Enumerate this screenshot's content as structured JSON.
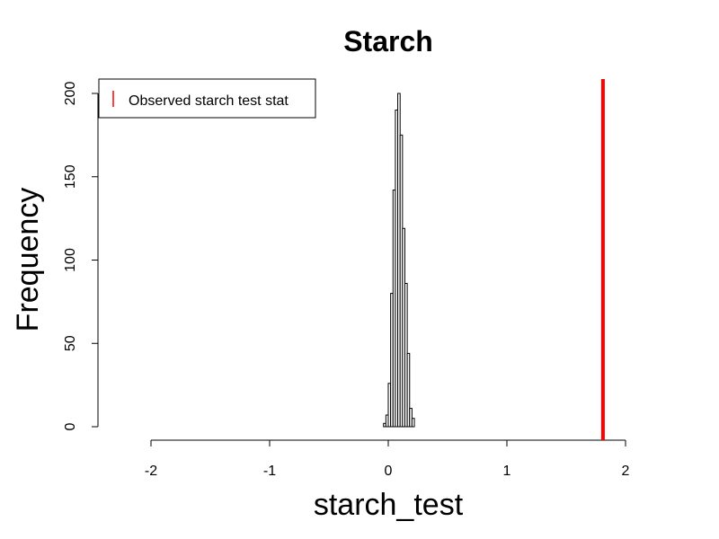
{
  "chart_data": {
    "type": "histogram",
    "title": "Starch",
    "xlabel": "starch_test",
    "ylabel": "Frequency",
    "xlim": [
      -2.5,
      2.0
    ],
    "ylim": [
      0,
      200
    ],
    "x_ticks": [
      "-2",
      "-1",
      "0",
      "1",
      "2"
    ],
    "y_ticks": [
      "0",
      "50",
      "100",
      "150",
      "200"
    ],
    "bin_width": 0.02,
    "bins": [
      {
        "x0": -0.04,
        "x1": -0.02,
        "count": 2
      },
      {
        "x0": -0.02,
        "x1": 0.0,
        "count": 7
      },
      {
        "x0": 0.0,
        "x1": 0.02,
        "count": 26
      },
      {
        "x0": 0.02,
        "x1": 0.04,
        "count": 80
      },
      {
        "x0": 0.04,
        "x1": 0.06,
        "count": 142
      },
      {
        "x0": 0.06,
        "x1": 0.08,
        "count": 190
      },
      {
        "x0": 0.08,
        "x1": 0.1,
        "count": 200
      },
      {
        "x0": 0.1,
        "x1": 0.12,
        "count": 175
      },
      {
        "x0": 0.12,
        "x1": 0.14,
        "count": 119
      },
      {
        "x0": 0.14,
        "x1": 0.16,
        "count": 86
      },
      {
        "x0": 0.16,
        "x1": 0.18,
        "count": 44
      },
      {
        "x0": 0.18,
        "x1": 0.2,
        "count": 11
      },
      {
        "x0": 0.2,
        "x1": 0.22,
        "count": 5
      }
    ],
    "reference_line": {
      "x": 1.81,
      "label": "Observed starch test stat",
      "color": "#ff0000"
    },
    "legend": {
      "position": "top-left",
      "entries": [
        "Observed starch test stat"
      ]
    },
    "grid": false
  }
}
